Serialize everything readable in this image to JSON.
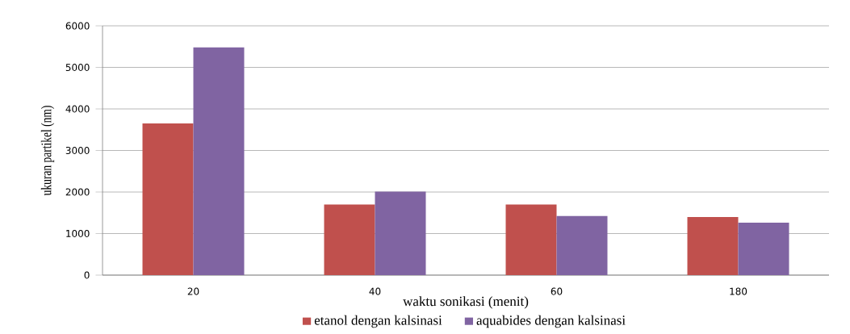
{
  "chart_data": {
    "type": "bar",
    "xlabel": "waktu sonikasi (menit)",
    "ylabel": "ukuran partikel (nm)",
    "categories": [
      "20",
      "40",
      "60",
      "180"
    ],
    "series": [
      {
        "name": "etanol dengan kalsinasi",
        "color": "#c0504d",
        "values": [
          3650,
          1700,
          1700,
          1400
        ]
      },
      {
        "name": "aquabides dengan kalsinasi",
        "color": "#8064a2",
        "values": [
          5480,
          2010,
          1420,
          1260
        ]
      }
    ],
    "ylim": [
      0,
      6000
    ],
    "yticks": [
      0,
      1000,
      2000,
      3000,
      4000,
      5000,
      6000
    ],
    "grid": "y",
    "legend": "bottom"
  }
}
